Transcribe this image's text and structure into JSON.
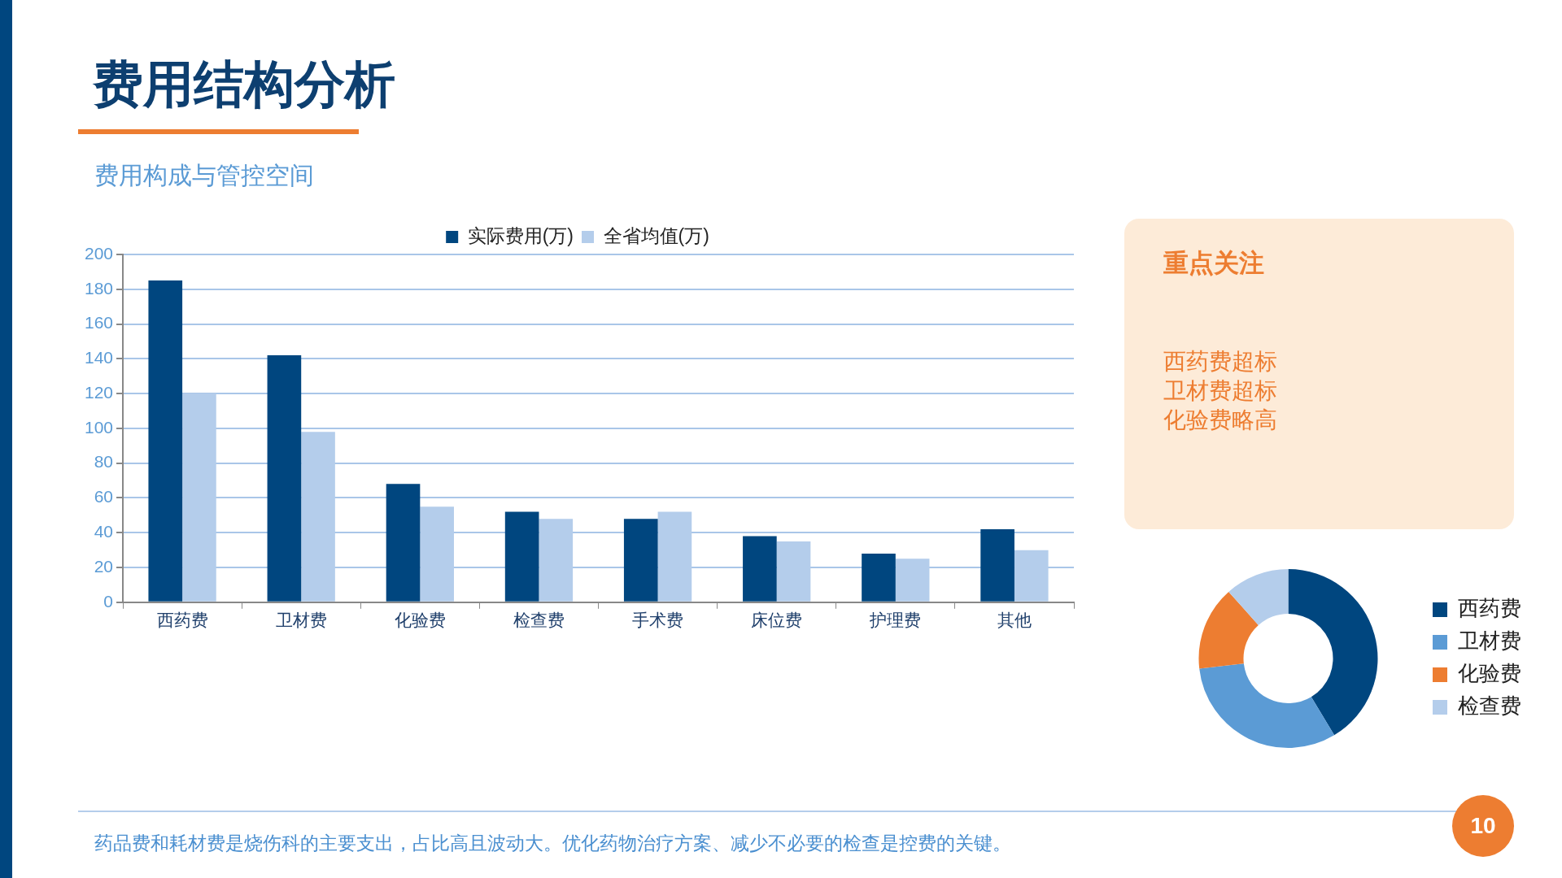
{
  "chart_data": [
    {
      "type": "bar",
      "title": "费用结构分析",
      "subtitle": "费用构成与管控空间",
      "categories": [
        "西药费",
        "卫材费",
        "化验费",
        "检查费",
        "手术费",
        "床位费",
        "护理费",
        "其他"
      ],
      "series": [
        {
          "name": "实际费用(万)",
          "color": "#00467f",
          "values": [
            185,
            142,
            68,
            52,
            48,
            38,
            28,
            42
          ]
        },
        {
          "name": "全省均值(万)",
          "color": "#b4cdeb",
          "values": [
            120,
            98,
            55,
            48,
            52,
            35,
            25,
            30
          ]
        }
      ],
      "ylim": [
        0,
        200
      ],
      "yticks": [
        0,
        20,
        40,
        60,
        80,
        100,
        120,
        140,
        160,
        180,
        200
      ],
      "grid": "y",
      "legend": "top",
      "annotations": [
        "药品费和耗材费是烧伤科的主要支出，占比高且波动大。优化药物治疗方案、减少不必要的检查是控费的关键。",
        "10"
      ]
    },
    {
      "type": "donut",
      "categories": [
        "西药费",
        "卫材费",
        "化验费",
        "检查费"
      ],
      "values": [
        41.4,
        31.8,
        15.2,
        11.6
      ],
      "colors": [
        "#00467f",
        "#5b9bd5",
        "#ed7d31",
        "#b4cdeb"
      ],
      "legend": "right"
    },
    {
      "type": "other",
      "title": "重点关注",
      "annotations": [
        "西药费超标",
        "卫材费超标",
        "化验费略高"
      ]
    }
  ]
}
